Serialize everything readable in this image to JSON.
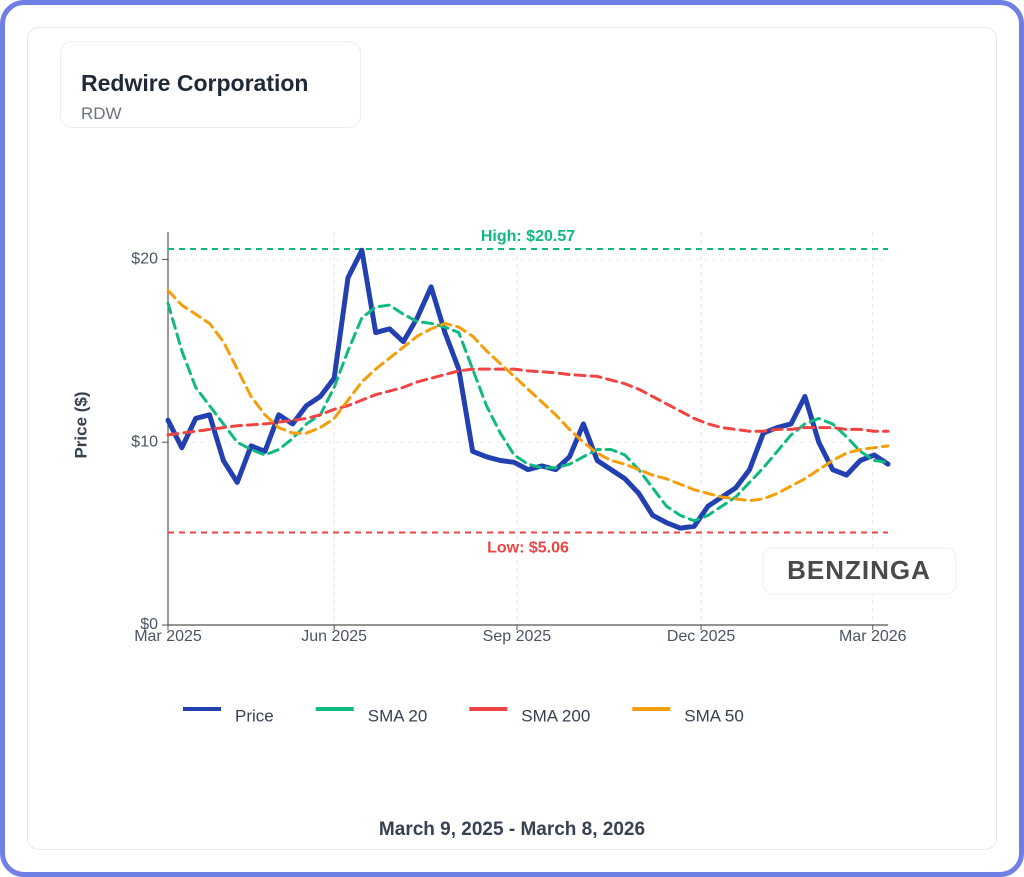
{
  "header": {
    "title": "Redwire Corporation",
    "subtitle": "RDW"
  },
  "chart_data": {
    "type": "line",
    "y_label": "Price ($)",
    "watermark": "BENZINGA",
    "xlim": [
      0,
      52
    ],
    "xticks": [
      {
        "value": 0,
        "label": "Mar 2025"
      },
      {
        "value": 12,
        "label": "Jun 2025"
      },
      {
        "value": 25.2,
        "label": "Sep 2025"
      },
      {
        "value": 38.5,
        "label": "Dec 2025"
      },
      {
        "value": 50.9,
        "label": "Mar 2026"
      }
    ],
    "ylim": [
      0,
      21.5
    ],
    "yticks": [
      {
        "value": 0,
        "label": "$0"
      },
      {
        "value": 10,
        "label": "$10"
      },
      {
        "value": 20,
        "label": "$20"
      }
    ],
    "grid": true,
    "series": [
      {
        "name": "Price",
        "color": "#2340b0",
        "values": [
          11.2,
          9.7,
          11.3,
          11.5,
          9.0,
          7.8,
          9.8,
          9.5,
          11.5,
          11.0,
          12.0,
          12.5,
          13.5,
          19.0,
          20.5,
          16.0,
          16.2,
          15.5,
          16.8,
          18.5,
          16.0,
          14.0,
          9.5,
          9.2,
          9.0,
          8.9,
          8.5,
          8.7,
          8.5,
          9.2,
          11.0,
          9.0,
          8.5,
          8.0,
          7.2,
          6.0,
          5.6,
          5.3,
          5.4,
          6.5,
          7.0,
          7.5,
          8.5,
          10.5,
          10.8,
          11.0,
          12.5,
          10.0,
          8.5,
          8.2,
          9.0,
          9.3,
          8.8
        ]
      },
      {
        "name": "SMA 20",
        "color": "#10b981",
        "values": [
          17.6,
          15.0,
          13.0,
          12.0,
          11.0,
          10.0,
          9.6,
          9.3,
          9.6,
          10.2,
          11.0,
          11.5,
          13.0,
          15.0,
          16.8,
          17.4,
          17.5,
          17.0,
          16.6,
          16.5,
          16.3,
          16.0,
          14.0,
          12.0,
          10.5,
          9.3,
          8.8,
          8.6,
          8.6,
          8.8,
          9.2,
          9.6,
          9.6,
          9.3,
          8.5,
          7.5,
          6.5,
          6.0,
          5.7,
          6.0,
          6.5,
          7.0,
          7.8,
          8.6,
          9.5,
          10.4,
          11.0,
          11.3,
          11.0,
          10.3,
          9.5,
          9.0,
          8.9
        ]
      },
      {
        "name": "SMA 200",
        "color": "#ef4444",
        "values": [
          10.4,
          10.5,
          10.6,
          10.7,
          10.8,
          10.9,
          10.95,
          11.0,
          11.1,
          11.2,
          11.3,
          11.5,
          11.8,
          12.0,
          12.3,
          12.6,
          12.8,
          13.0,
          13.3,
          13.5,
          13.7,
          13.9,
          14.0,
          14.0,
          14.0,
          14.0,
          13.9,
          13.85,
          13.8,
          13.7,
          13.65,
          13.6,
          13.4,
          13.2,
          12.9,
          12.5,
          12.1,
          11.7,
          11.3,
          11.0,
          10.8,
          10.7,
          10.6,
          10.6,
          10.7,
          10.7,
          10.8,
          10.8,
          10.8,
          10.7,
          10.7,
          10.6,
          10.6
        ]
      },
      {
        "name": "SMA 50",
        "color": "#f59e0b",
        "values": [
          18.3,
          17.5,
          17.0,
          16.5,
          15.5,
          14.0,
          12.5,
          11.5,
          10.8,
          10.5,
          10.5,
          10.8,
          11.3,
          12.3,
          13.3,
          14.0,
          14.6,
          15.2,
          15.8,
          16.2,
          16.5,
          16.3,
          15.8,
          15.0,
          14.3,
          13.6,
          12.9,
          12.2,
          11.5,
          10.7,
          10.0,
          9.4,
          9.0,
          8.8,
          8.5,
          8.2,
          8.0,
          7.7,
          7.4,
          7.2,
          7.0,
          6.9,
          6.8,
          6.9,
          7.2,
          7.6,
          8.0,
          8.5,
          9.0,
          9.4,
          9.6,
          9.7,
          9.8
        ]
      }
    ],
    "reference_lines": [
      {
        "value": 20.57,
        "label": "High: $20.57",
        "color": "#10b981"
      },
      {
        "value": 5.06,
        "label": "Low: $5.06",
        "color": "#ef4444"
      }
    ]
  },
  "footer": {
    "date_range": "March 9, 2025 - March 8, 2026"
  }
}
